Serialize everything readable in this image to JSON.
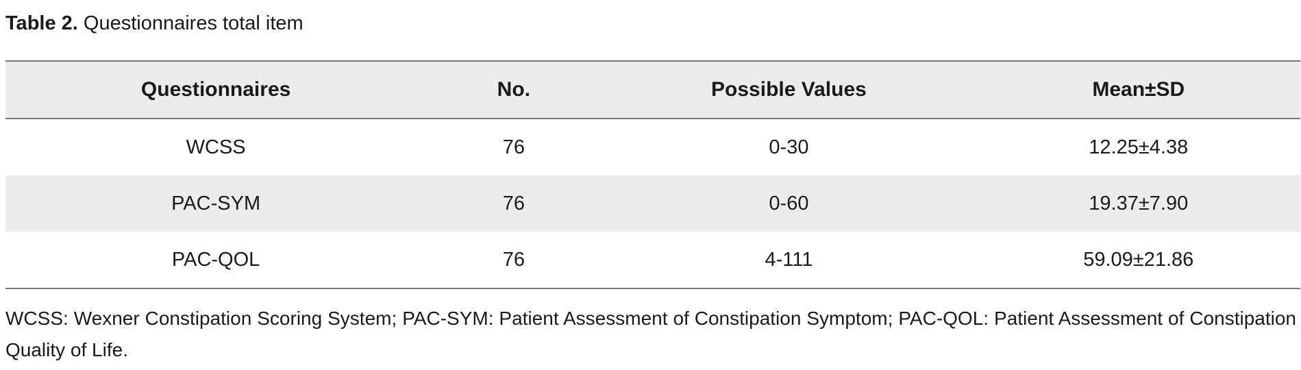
{
  "caption": {
    "label": "Table 2.",
    "text": "Questionnaires total item"
  },
  "table": {
    "headers": [
      "Questionnaires",
      "No.",
      "Possible Values",
      "Mean±SD"
    ],
    "rows": [
      [
        "WCSS",
        "76",
        "0-30",
        "12.25±4.38"
      ],
      [
        "PAC-SYM",
        "76",
        "0-60",
        "19.37±7.90"
      ],
      [
        "PAC-QOL",
        "76",
        "4-111",
        "59.09±21.86"
      ]
    ]
  },
  "footnote": "WCSS: Wexner Constipation Scoring System; PAC-SYM: Patient Assessment of Constipation Symptom; PAC-QOL: Patient Assessment of Constipation Quality of Life."
}
